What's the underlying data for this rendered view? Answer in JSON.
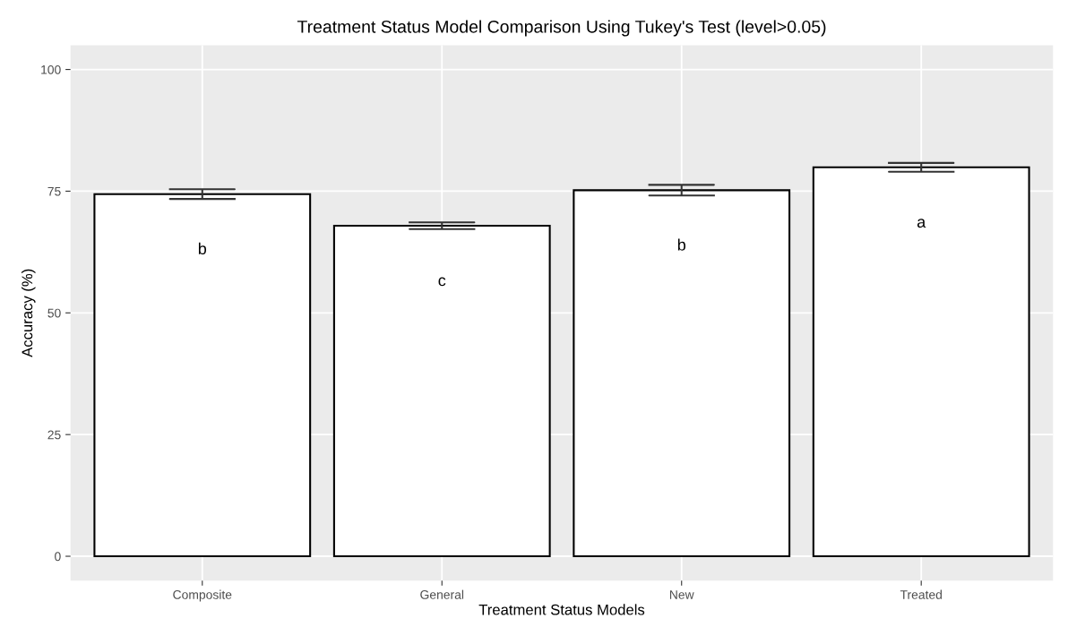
{
  "chart_data": {
    "type": "bar",
    "title": "Treatment Status Model Comparison Using Tukey's Test (level>0.05)",
    "xlabel": "Treatment Status Models",
    "ylabel": "Accuracy (%)",
    "categories": [
      "Composite",
      "General",
      "New",
      "Treated"
    ],
    "values": [
      74.4,
      67.9,
      75.2,
      79.9
    ],
    "errors": [
      1.0,
      0.7,
      1.1,
      0.9
    ],
    "color": "#ffffff",
    "ylim": [
      -5,
      105
    ],
    "yticks": [
      0,
      25,
      50,
      75,
      100
    ],
    "grid": true,
    "annotations": [
      "b",
      "c",
      "b",
      "a"
    ]
  }
}
